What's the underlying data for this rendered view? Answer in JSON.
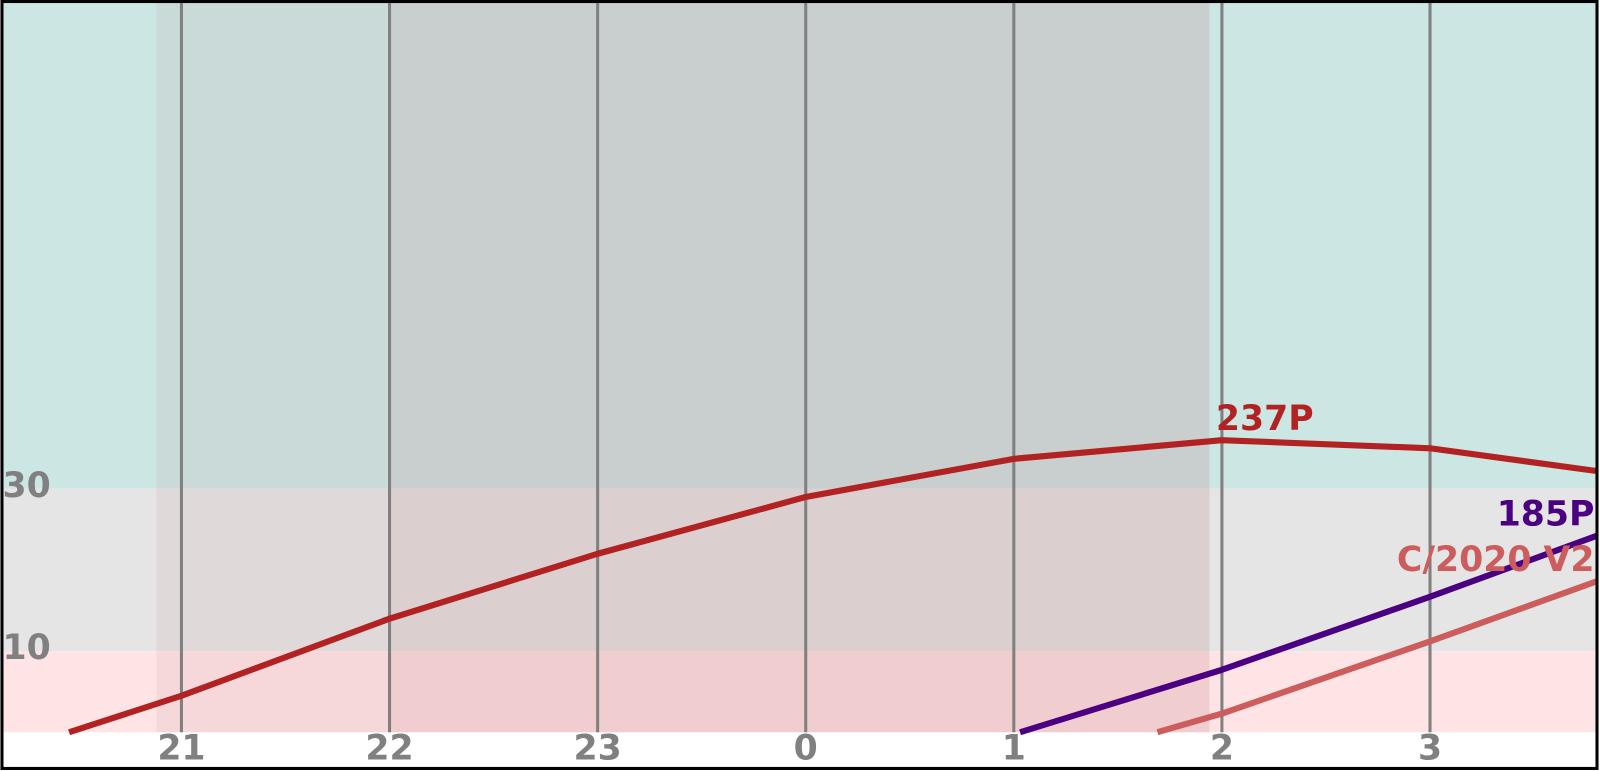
{
  "chart_data": {
    "type": "line",
    "xlim": [
      20.14,
      27.8
    ],
    "ylim": [
      0,
      90
    ],
    "xticks": [
      21,
      22,
      23,
      {
        "value": 24,
        "label": "0"
      },
      {
        "value": 25,
        "label": "1"
      },
      {
        "value": 26,
        "label": "2"
      },
      {
        "value": 27,
        "label": "3"
      }
    ],
    "yticks": [
      10,
      30
    ],
    "grid": true,
    "bands": [
      {
        "from": 30,
        "to": 90,
        "color": "#cce6e4"
      },
      {
        "from": 10,
        "to": 30,
        "color": "#e5e5e5"
      },
      {
        "from": 0,
        "to": 10,
        "color": "#ffe4e6"
      }
    ],
    "night_spans": [
      [
        20.88,
        25.94
      ],
      [
        22.0,
        25.94
      ]
    ],
    "series": [
      {
        "name": "237P",
        "color": "#b22222",
        "x": [
          20.46,
          21,
          22,
          23,
          24,
          25,
          26,
          27,
          27.8
        ],
        "values": [
          0,
          4.5,
          14,
          22,
          29,
          33.7,
          36,
          35,
          32.2
        ]
      },
      {
        "name": "185P",
        "color": "#4b0082",
        "x": [
          25.03,
          26,
          27,
          27.8
        ],
        "values": [
          0,
          7.7,
          16.7,
          24.2
        ]
      },
      {
        "name": "C/2020 V2",
        "color": "#cd5c5c",
        "x": [
          25.69,
          26,
          27,
          27.8
        ],
        "values": [
          0,
          2.3,
          11.2,
          18.6
        ]
      }
    ]
  }
}
